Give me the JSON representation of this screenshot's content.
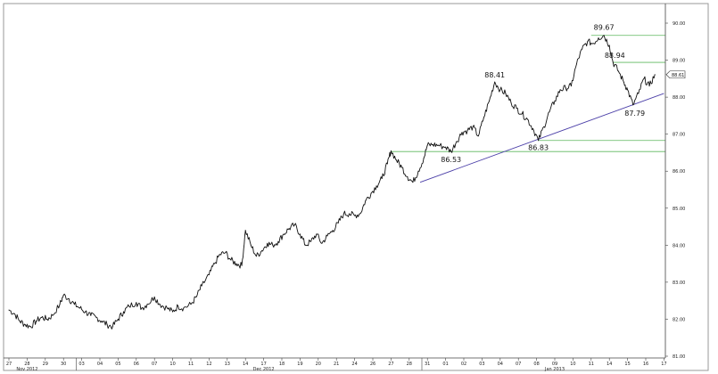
{
  "chart_data": {
    "type": "line",
    "title": "",
    "xlabel": "",
    "ylabel": "",
    "ylim": [
      81.0,
      90.0
    ],
    "y_ticks": [
      "81.00",
      "82.00",
      "83.00",
      "84.00",
      "85.00",
      "86.00",
      "87.00",
      "88.00",
      "89.00",
      "90.00"
    ],
    "x_tick_labels": [
      "27",
      "28",
      "29",
      "30",
      "03",
      "04",
      "05",
      "06",
      "07",
      "10",
      "11",
      "12",
      "13",
      "14",
      "17",
      "18",
      "19",
      "20",
      "21",
      "24",
      "26",
      "27",
      "28",
      "31",
      "01",
      "02",
      "03",
      "04",
      "07",
      "08",
      "09",
      "10",
      "11",
      "14",
      "15",
      "16",
      "17"
    ],
    "months": [
      {
        "label": "Nov 2012",
        "tick_index": 1
      },
      {
        "label": "Dec 2012",
        "tick_index": 14
      },
      {
        "label": "Jan 2013",
        "tick_index": 30
      }
    ],
    "series": [
      {
        "points": [
          [
            0,
            82.25
          ],
          [
            0.3,
            82.15
          ],
          [
            0.6,
            81.95
          ],
          [
            0.9,
            81.85
          ],
          [
            1.2,
            81.8
          ],
          [
            1.5,
            81.95
          ],
          [
            1.8,
            82.05
          ],
          [
            2.1,
            82.0
          ],
          [
            2.4,
            82.1
          ],
          [
            2.8,
            82.4
          ],
          [
            3.0,
            82.65
          ],
          [
            3.3,
            82.55
          ],
          [
            3.6,
            82.4
          ],
          [
            3.9,
            82.3
          ],
          [
            4.2,
            82.2
          ],
          [
            4.5,
            82.1
          ],
          [
            4.8,
            82.05
          ],
          [
            5.1,
            81.95
          ],
          [
            5.4,
            81.85
          ],
          [
            5.7,
            81.8
          ],
          [
            6.0,
            82.0
          ],
          [
            6.3,
            82.2
          ],
          [
            6.6,
            82.35
          ],
          [
            7.0,
            82.45
          ],
          [
            7.3,
            82.3
          ],
          [
            7.6,
            82.4
          ],
          [
            8.0,
            82.6
          ],
          [
            8.3,
            82.4
          ],
          [
            8.7,
            82.3
          ],
          [
            9.0,
            82.2
          ],
          [
            9.3,
            82.35
          ],
          [
            9.6,
            82.3
          ],
          [
            10.0,
            82.4
          ],
          [
            10.3,
            82.6
          ],
          [
            10.6,
            82.9
          ],
          [
            11.0,
            83.2
          ],
          [
            11.3,
            83.5
          ],
          [
            11.6,
            83.75
          ],
          [
            11.9,
            83.8
          ],
          [
            12.2,
            83.6
          ],
          [
            12.5,
            83.5
          ],
          [
            12.8,
            83.45
          ],
          [
            13.0,
            84.4
          ],
          [
            13.3,
            84.0
          ],
          [
            13.6,
            83.7
          ],
          [
            13.9,
            83.85
          ],
          [
            14.2,
            84.05
          ],
          [
            14.5,
            84.0
          ],
          [
            14.8,
            84.1
          ],
          [
            15.1,
            84.3
          ],
          [
            15.4,
            84.45
          ],
          [
            15.7,
            84.55
          ],
          [
            16.0,
            84.3
          ],
          [
            16.3,
            84.0
          ],
          [
            16.6,
            84.1
          ],
          [
            16.9,
            84.3
          ],
          [
            17.2,
            84.05
          ],
          [
            17.5,
            84.25
          ],
          [
            17.8,
            84.4
          ],
          [
            18.1,
            84.6
          ],
          [
            18.4,
            84.85
          ],
          [
            18.7,
            84.85
          ],
          [
            19.0,
            84.8
          ],
          [
            19.3,
            84.85
          ],
          [
            19.6,
            85.2
          ],
          [
            19.9,
            85.4
          ],
          [
            20.2,
            85.6
          ],
          [
            20.5,
            85.8
          ],
          [
            20.8,
            86.2
          ],
          [
            21.0,
            86.55
          ],
          [
            21.3,
            86.3
          ],
          [
            21.6,
            86.1
          ],
          [
            21.9,
            85.85
          ],
          [
            22.2,
            85.7
          ],
          [
            22.5,
            86.0
          ],
          [
            22.8,
            86.35
          ],
          [
            23.0,
            86.7
          ],
          [
            23.3,
            86.72
          ],
          [
            23.6,
            86.7
          ],
          [
            24.0,
            86.65
          ],
          [
            24.3,
            86.53
          ],
          [
            24.6,
            86.8
          ],
          [
            24.9,
            87.05
          ],
          [
            25.2,
            87.1
          ],
          [
            25.5,
            87.2
          ],
          [
            25.8,
            86.95
          ],
          [
            26.1,
            87.45
          ],
          [
            26.4,
            87.9
          ],
          [
            26.7,
            88.41
          ],
          [
            27.0,
            88.2
          ],
          [
            27.3,
            88.1
          ],
          [
            27.6,
            87.85
          ],
          [
            27.9,
            87.7
          ],
          [
            28.2,
            87.55
          ],
          [
            28.5,
            87.4
          ],
          [
            28.8,
            87.15
          ],
          [
            29.1,
            86.83
          ],
          [
            29.4,
            87.2
          ],
          [
            29.7,
            87.6
          ],
          [
            30.0,
            87.9
          ],
          [
            30.3,
            88.2
          ],
          [
            30.6,
            88.25
          ],
          [
            30.9,
            88.3
          ],
          [
            31.2,
            88.9
          ],
          [
            31.5,
            89.3
          ],
          [
            31.8,
            89.5
          ],
          [
            32.1,
            89.45
          ],
          [
            32.4,
            89.6
          ],
          [
            32.7,
            89.67
          ],
          [
            33.0,
            89.4
          ],
          [
            33.2,
            88.94
          ],
          [
            33.5,
            88.7
          ],
          [
            33.8,
            88.4
          ],
          [
            34.0,
            88.2
          ],
          [
            34.3,
            87.79
          ],
          [
            34.6,
            88.1
          ],
          [
            34.9,
            88.5
          ],
          [
            35.2,
            88.3
          ],
          [
            35.5,
            88.61
          ]
        ]
      }
    ],
    "annotations": [
      {
        "label": "89.67",
        "x": 32.7,
        "y": 89.67
      },
      {
        "label": "88.94",
        "x": 33.2,
        "y": 88.94
      },
      {
        "label": "88.41",
        "x": 26.7,
        "y": 88.41
      },
      {
        "label": "87.79",
        "x": 34.3,
        "y": 87.79
      },
      {
        "label": "86.53",
        "x": 24.3,
        "y": 86.53
      },
      {
        "label": "86.83",
        "x": 29.1,
        "y": 86.83
      }
    ],
    "hlines": [
      {
        "y": 89.67,
        "x_start": 32.0,
        "x_end": 36.0,
        "color": "#5cb85c"
      },
      {
        "y": 88.94,
        "x_start": 33.2,
        "x_end": 36.0,
        "color": "#5cb85c"
      },
      {
        "y": 86.83,
        "x_start": 29.1,
        "x_end": 36.0,
        "color": "#5cb85c"
      },
      {
        "y": 86.53,
        "x_start": 21.0,
        "x_end": 36.0,
        "color": "#5cb85c"
      }
    ],
    "trendline": {
      "from": [
        22.6,
        85.7
      ],
      "to": [
        36.0,
        88.1
      ],
      "color": "#4b3fa8"
    },
    "last_price": "88.61",
    "grid": false,
    "colors": {
      "price": "#111111",
      "support": "#5cb85c",
      "trend": "#4b3fa8",
      "axis": "#444444"
    }
  }
}
